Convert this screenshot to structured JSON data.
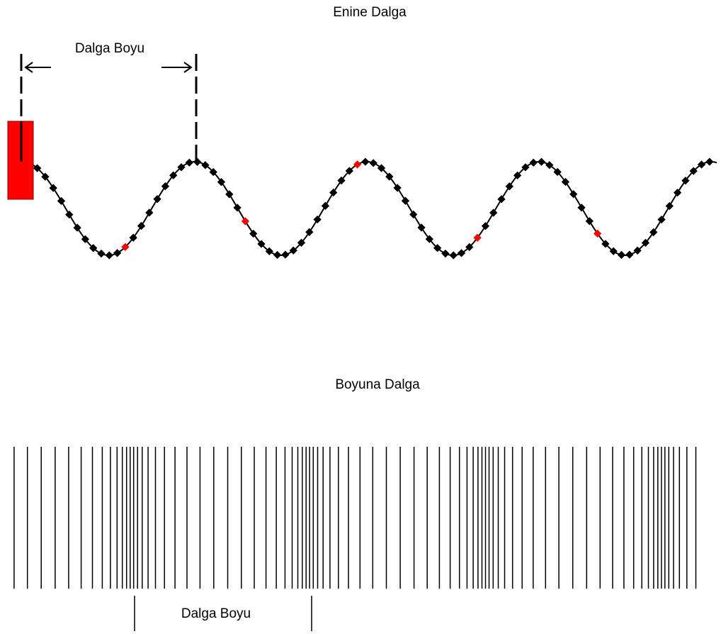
{
  "transverse": {
    "title": "Enine Dalga",
    "wavelength_label": "Dalga Boyu"
  },
  "longitudinal": {
    "title": "Boyuna Dalga",
    "wavelength_label": "Dalga Boyu"
  }
}
